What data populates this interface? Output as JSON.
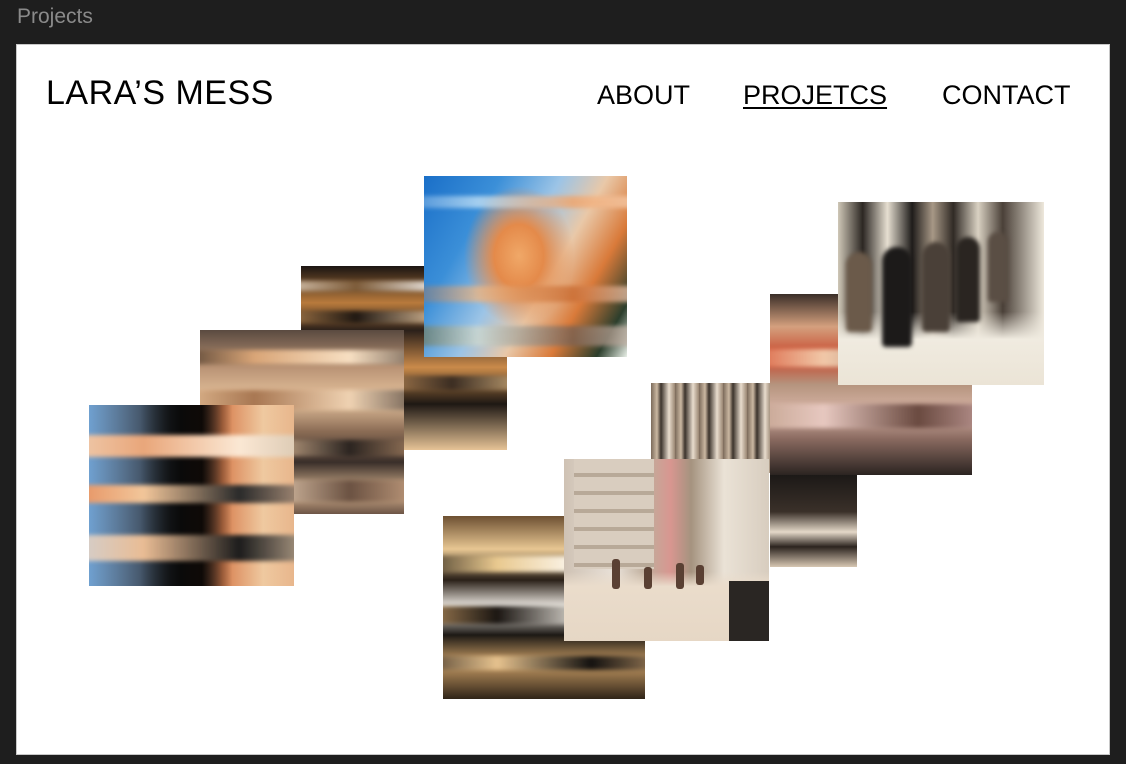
{
  "frame": {
    "label": "Projects"
  },
  "header": {
    "logo": "LARA’S MESS",
    "nav": [
      {
        "label": "ABOUT",
        "active": false
      },
      {
        "label": "PROJETCS",
        "active": true
      },
      {
        "label": "CONTACT",
        "active": false
      }
    ]
  },
  "gallery": {
    "photo_count": 10
  },
  "colors": {
    "canvas_background": "#1e1e1e",
    "page_background": "#ffffff",
    "text": "#000000",
    "frame_label": "#8a8a8a"
  }
}
